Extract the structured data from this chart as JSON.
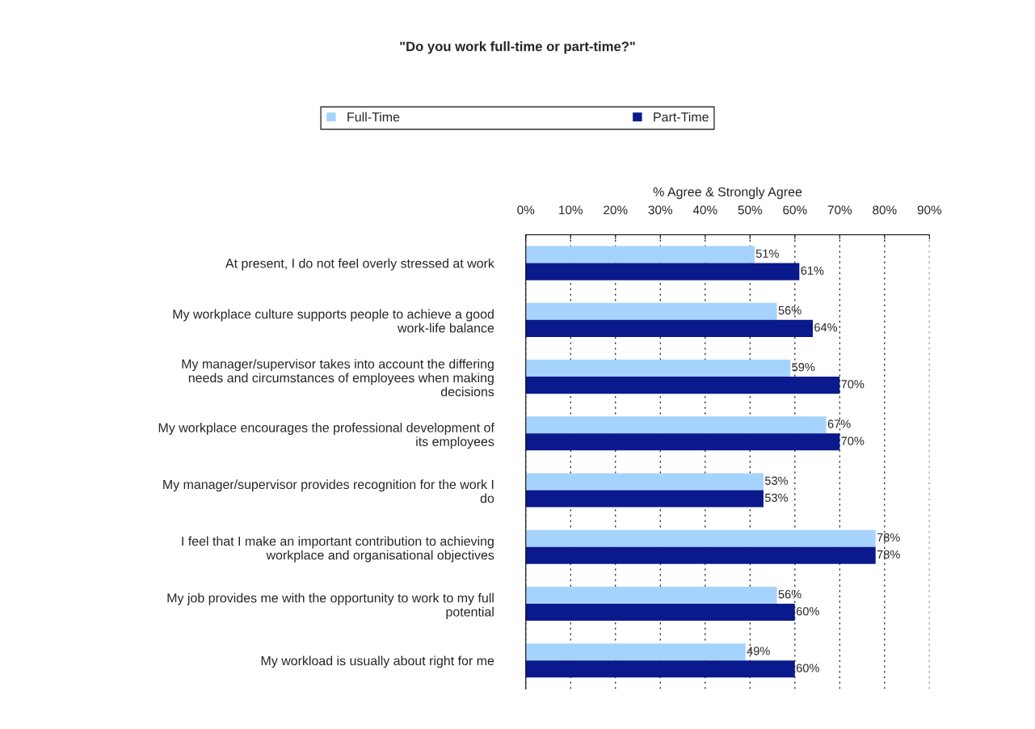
{
  "chart_data": {
    "type": "bar",
    "orientation": "horizontal",
    "title": "\"Do you work full-time or part-time?\"",
    "xlabel": "% Agree & Strongly Agree",
    "categories": [
      "At present, I do not feel overly stressed at work",
      "My workplace culture supports people to achieve a good\nwork-life balance",
      "My manager/supervisor takes into account the differing\nneeds and circumstances of employees when making\ndecisions",
      "My workplace encourages the professional development of\nits employees",
      "My manager/supervisor provides recognition for the work I\ndo",
      "I feel that I make an important contribution to achieving\nworkplace and organisational objectives",
      "My job provides me with the opportunity to work to my full\npotential",
      "My workload is usually about right for me"
    ],
    "series": [
      {
        "name": "Full-Time",
        "color": "#a6d3fe",
        "values": [
          51,
          56,
          59,
          67,
          53,
          78,
          56,
          49
        ],
        "value_labels": [
          "51%",
          "56%",
          "59%",
          "67%",
          "53%",
          "78%",
          "56%",
          "49%"
        ]
      },
      {
        "name": "Part-Time",
        "color": "#0a1a8c",
        "values": [
          61,
          64,
          70,
          70,
          53,
          78,
          60,
          60
        ],
        "value_labels": [
          "61%",
          "64%",
          "70%",
          "70%",
          "53%",
          "78%",
          "60%",
          "60%"
        ]
      }
    ],
    "xlim": [
      0,
      90
    ],
    "xticks": [
      {
        "value": 0,
        "label": "0%"
      },
      {
        "value": 10,
        "label": "10%"
      },
      {
        "value": 20,
        "label": "20%"
      },
      {
        "value": 30,
        "label": "30%"
      },
      {
        "value": 40,
        "label": "40%"
      },
      {
        "value": 50,
        "label": "50%"
      },
      {
        "value": 60,
        "label": "60%"
      },
      {
        "value": 70,
        "label": "70%"
      },
      {
        "value": 80,
        "label": "80%"
      },
      {
        "value": 90,
        "label": "90%"
      }
    ],
    "grid": "x",
    "legend": "top"
  }
}
